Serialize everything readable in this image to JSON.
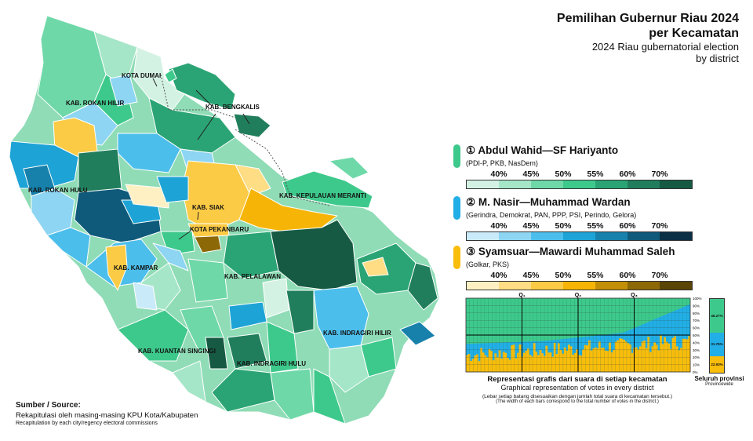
{
  "title": {
    "line1": "Pemilihan Gubernur Riau 2024",
    "line2": "per Kecamatan",
    "sub1": "2024 Riau gubernatorial election",
    "sub2": "by district"
  },
  "candidates": [
    {
      "label": "① Abdul Wahid—SF Hariyanto",
      "parties": "(PDI-P, PKB, NasDem)",
      "color": "#3ec98c",
      "ramp": [
        "#d4f2e4",
        "#a6e6c8",
        "#6fd8a8",
        "#3ec98c",
        "#2aa474",
        "#217e5c",
        "#165a43"
      ]
    },
    {
      "label": "② M. Nasir—Muhammad Wardan",
      "parties": "(Gerindra, Demokrat, PAN, PPP, PSI, Perindo, Gelora)",
      "color": "#22aee6",
      "ramp": [
        "#c9eaf8",
        "#8dd5f2",
        "#4cbeec",
        "#1ea3d6",
        "#1781ab",
        "#0f5a7a",
        "#0b2f44"
      ]
    },
    {
      "label": "③ Syamsuar—Mawardi Muhammad Saleh",
      "parties": "(Golkar, PKS)",
      "color": "#f9bd0b",
      "ramp": [
        "#fff0c4",
        "#fedd85",
        "#fccb45",
        "#f6b506",
        "#c28f07",
        "#8c6807",
        "#5a4406"
      ]
    }
  ],
  "ticks": [
    "40%",
    "45%",
    "50%",
    "55%",
    "60%",
    "70%"
  ],
  "map_labels": [
    "KOTA DUMAI",
    "KAB. ROKAN HILIR",
    "KAB. BENGKALIS",
    "KAB. ROKAN HULU",
    "KAB. SIAK",
    "KAB. KEPULAUAN MERANTI",
    "KOTA PEKANBARU",
    "KAB. KAMPAR",
    "KAB. PELALAWAN",
    "KAB. INDRAGIRI HILIR",
    "KAB. KUANTAN SINGINGI",
    "KAB. INDRAGIRI HULU"
  ],
  "chart_data": {
    "type": "area",
    "quartile_labels": [
      "Q₁",
      "Q₂",
      "Q₃"
    ],
    "y_ticks": [
      "100%",
      "90%",
      "80%",
      "70%",
      "60%",
      "50%",
      "40%",
      "30%",
      "20%",
      "10%",
      "0%"
    ],
    "series": [
      {
        "name": "Abdul Wahid—SF Hariyanto",
        "color": "#3ec98c"
      },
      {
        "name": "M. Nasir—Muhammad Wardan",
        "color": "#22aee6"
      },
      {
        "name": "Syamsuar—Mawardi Muhammad Saleh",
        "color": "#f9bd0b"
      }
    ],
    "provincewide": [
      {
        "label": "46.27%",
        "value": 46.27
      },
      {
        "label": "31.76%",
        "value": 31.76
      },
      {
        "label": "22.93%",
        "value": 22.93
      }
    ],
    "province_title": "Seluruh provinsi",
    "province_sub": "Provincewide",
    "caption": "Representasi grafis dari suara di setiap kecamatan",
    "caption_en": "Graphical representation of votes in every district",
    "note_id": "(Lebar setiap batang disesuaikan dengan jumlah total suara di kecamatan tersebut.)",
    "note_en": "(The width of each bars correspond to the total number of votes in the district.)"
  },
  "source": {
    "heading": "Sumber / Source:",
    "line1": "Rekapitulasi oleh masing-masing KPU Kota/Kabupaten",
    "line2": "Recapitulation by each city/regency electoral commissions"
  }
}
